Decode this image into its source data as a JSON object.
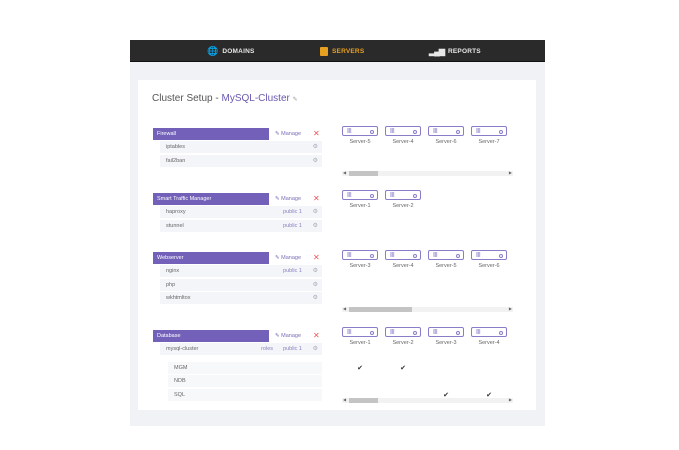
{
  "nav": {
    "items": [
      {
        "label": "DOMAINS",
        "icon": "globe-icon",
        "active": false
      },
      {
        "label": "SERVERS",
        "icon": "server-icon",
        "active": true
      },
      {
        "label": "REPORTS",
        "icon": "bar-chart-icon",
        "active": false
      }
    ]
  },
  "title": {
    "prefix": "Cluster Setup - ",
    "cluster": "MySQL-Cluster"
  },
  "manage_label": "Manage",
  "colors": {
    "accent": "#7361b9",
    "active_nav": "#e8a020",
    "nav_bg": "#2a2a2a"
  },
  "sections": [
    {
      "name": "Firewall",
      "rows": [
        {
          "label": "iptables"
        },
        {
          "label": "fail2ban"
        }
      ],
      "servers": [
        "Server-5",
        "Server-4",
        "Server-6",
        "Server-7"
      ],
      "scroll": true,
      "thumb": [
        0.04,
        0.21
      ]
    },
    {
      "name": "Smart Traffic Manager",
      "rows": [
        {
          "label": "haproxy",
          "public": "public 1"
        },
        {
          "label": "stunnel",
          "public": "public 1"
        }
      ],
      "servers": [
        "Server-1",
        "Server-2"
      ],
      "scroll": false
    },
    {
      "name": "Webserver",
      "rows": [
        {
          "label": "nginx",
          "public": "public 1"
        },
        {
          "label": "php"
        },
        {
          "label": "wkhtmltox"
        }
      ],
      "servers": [
        "Server-3",
        "Server-4",
        "Server-5",
        "Server-6"
      ],
      "scroll": true,
      "thumb": [
        0.04,
        0.41
      ]
    },
    {
      "name": "Database",
      "rows": [
        {
          "label": "mysql-cluster",
          "roles": "roles",
          "public": "public 1"
        }
      ],
      "subrows": [
        {
          "label": "MGM",
          "checks": [
            true,
            true,
            false,
            false
          ]
        },
        {
          "label": "NDB",
          "checks": [
            false,
            false,
            false,
            false
          ]
        },
        {
          "label": "SQL",
          "checks": [
            false,
            false,
            true,
            true
          ]
        }
      ],
      "servers": [
        "Server-1",
        "Server-2",
        "Server-3",
        "Server-4"
      ],
      "scroll": true,
      "thumb": [
        0.04,
        0.21
      ]
    }
  ]
}
